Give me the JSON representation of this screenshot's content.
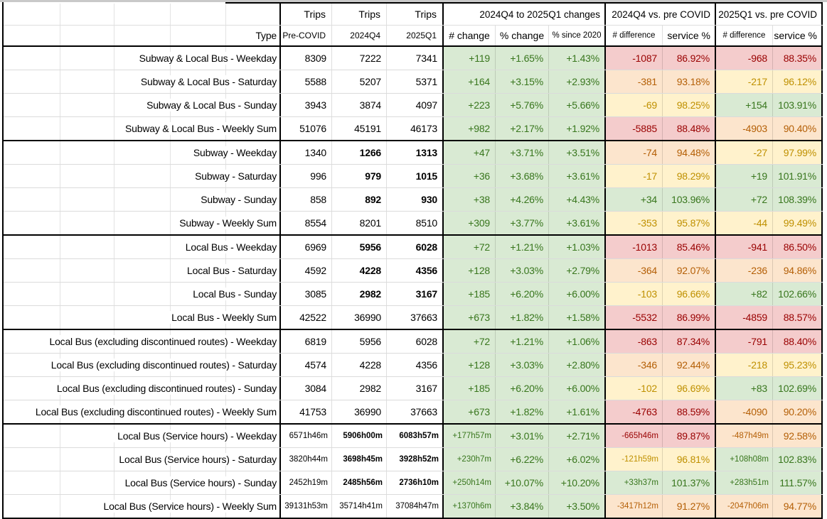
{
  "header": {
    "trips_label": "Trips",
    "type_label": "Type",
    "groups": {
      "changes": "2024Q4 to 2025Q1 changes",
      "q4_vs_pre": "2024Q4 vs. pre COVID",
      "q1_vs_pre": "2025Q1 vs. pre COVID"
    },
    "sub": {
      "pre_covid": "Pre-COVID",
      "q4": "2024Q4",
      "q1": "2025Q1",
      "num_change": "# change",
      "pct_change": "% change",
      "pct_since_2020": "% since 2020",
      "num_difference": "# difference",
      "service_pct": "service %"
    }
  },
  "colors": {
    "green_bg": "#d9ead3",
    "green_text": "#38761d",
    "yellow_bg": "#fff2cc",
    "yellow_text": "#bf9000",
    "orange_bg": "#fce5cd",
    "orange_text": "#b45f06",
    "red_bg": "#f4cccc",
    "red_text": "#990000"
  },
  "rows": [
    {
      "label": "Subway & Local Bus - Weekday",
      "pre": "8309",
      "q4": "7222",
      "q1": "7341",
      "chg": "+119",
      "chg_pct": "+1.65%",
      "pct_2020": "+1.43%",
      "diff_q4": "-1087",
      "svc_q4": "86.92%",
      "c_q4": "red",
      "diff_q1": "-968",
      "svc_q1": "88.35%",
      "c_q1": "red",
      "bold": false,
      "small": false
    },
    {
      "label": "Subway & Local Bus - Saturday",
      "pre": "5588",
      "q4": "5207",
      "q1": "5371",
      "chg": "+164",
      "chg_pct": "+3.15%",
      "pct_2020": "+2.93%",
      "diff_q4": "-381",
      "svc_q4": "93.18%",
      "c_q4": "orange",
      "diff_q1": "-217",
      "svc_q1": "96.12%",
      "c_q1": "yellow",
      "bold": false,
      "small": false
    },
    {
      "label": "Subway & Local Bus - Sunday",
      "pre": "3943",
      "q4": "3874",
      "q1": "4097",
      "chg": "+223",
      "chg_pct": "+5.76%",
      "pct_2020": "+5.66%",
      "diff_q4": "-69",
      "svc_q4": "98.25%",
      "c_q4": "yellow",
      "diff_q1": "+154",
      "svc_q1": "103.91%",
      "c_q1": "green",
      "bold": false,
      "small": false
    },
    {
      "label": "Subway & Local Bus - Weekly Sum",
      "pre": "51076",
      "q4": "45191",
      "q1": "46173",
      "chg": "+982",
      "chg_pct": "+2.17%",
      "pct_2020": "+1.92%",
      "diff_q4": "-5885",
      "svc_q4": "88.48%",
      "c_q4": "red",
      "diff_q1": "-4903",
      "svc_q1": "90.40%",
      "c_q1": "orange",
      "bold": false,
      "small": false
    },
    {
      "label": "Subway - Weekday",
      "pre": "1340",
      "q4": "1266",
      "q1": "1313",
      "chg": "+47",
      "chg_pct": "+3.71%",
      "pct_2020": "+3.51%",
      "diff_q4": "-74",
      "svc_q4": "94.48%",
      "c_q4": "orange",
      "diff_q1": "-27",
      "svc_q1": "97.99%",
      "c_q1": "yellow",
      "bold": true,
      "small": false
    },
    {
      "label": "Subway - Saturday",
      "pre": "996",
      "q4": "979",
      "q1": "1015",
      "chg": "+36",
      "chg_pct": "+3.68%",
      "pct_2020": "+3.61%",
      "diff_q4": "-17",
      "svc_q4": "98.29%",
      "c_q4": "yellow",
      "diff_q1": "+19",
      "svc_q1": "101.91%",
      "c_q1": "green",
      "bold": true,
      "small": false
    },
    {
      "label": "Subway - Sunday",
      "pre": "858",
      "q4": "892",
      "q1": "930",
      "chg": "+38",
      "chg_pct": "+4.26%",
      "pct_2020": "+4.43%",
      "diff_q4": "+34",
      "svc_q4": "103.96%",
      "c_q4": "green",
      "diff_q1": "+72",
      "svc_q1": "108.39%",
      "c_q1": "green",
      "bold": true,
      "small": false
    },
    {
      "label": "Subway - Weekly Sum",
      "pre": "8554",
      "q4": "8201",
      "q1": "8510",
      "chg": "+309",
      "chg_pct": "+3.77%",
      "pct_2020": "+3.61%",
      "diff_q4": "-353",
      "svc_q4": "95.87%",
      "c_q4": "yellow",
      "diff_q1": "-44",
      "svc_q1": "99.49%",
      "c_q1": "yellow",
      "bold": false,
      "small": false
    },
    {
      "label": "Local Bus - Weekday",
      "pre": "6969",
      "q4": "5956",
      "q1": "6028",
      "chg": "+72",
      "chg_pct": "+1.21%",
      "pct_2020": "+1.03%",
      "diff_q4": "-1013",
      "svc_q4": "85.46%",
      "c_q4": "red",
      "diff_q1": "-941",
      "svc_q1": "86.50%",
      "c_q1": "red",
      "bold": true,
      "small": false
    },
    {
      "label": "Local Bus - Saturday",
      "pre": "4592",
      "q4": "4228",
      "q1": "4356",
      "chg": "+128",
      "chg_pct": "+3.03%",
      "pct_2020": "+2.79%",
      "diff_q4": "-364",
      "svc_q4": "92.07%",
      "c_q4": "orange",
      "diff_q1": "-236",
      "svc_q1": "94.86%",
      "c_q1": "orange",
      "bold": true,
      "small": false
    },
    {
      "label": "Local Bus - Sunday",
      "pre": "3085",
      "q4": "2982",
      "q1": "3167",
      "chg": "+185",
      "chg_pct": "+6.20%",
      "pct_2020": "+6.00%",
      "diff_q4": "-103",
      "svc_q4": "96.66%",
      "c_q4": "yellow",
      "diff_q1": "+82",
      "svc_q1": "102.66%",
      "c_q1": "green",
      "bold": true,
      "small": false
    },
    {
      "label": "Local Bus - Weekly Sum",
      "pre": "42522",
      "q4": "36990",
      "q1": "37663",
      "chg": "+673",
      "chg_pct": "+1.82%",
      "pct_2020": "+1.58%",
      "diff_q4": "-5532",
      "svc_q4": "86.99%",
      "c_q4": "red",
      "diff_q1": "-4859",
      "svc_q1": "88.57%",
      "c_q1": "red",
      "bold": false,
      "small": false
    },
    {
      "label": "Local Bus (excluding discontinued routes) - Weekday",
      "pre": "6819",
      "q4": "5956",
      "q1": "6028",
      "chg": "+72",
      "chg_pct": "+1.21%",
      "pct_2020": "+1.06%",
      "diff_q4": "-863",
      "svc_q4": "87.34%",
      "c_q4": "red",
      "diff_q1": "-791",
      "svc_q1": "88.40%",
      "c_q1": "red",
      "bold": false,
      "small": false
    },
    {
      "label": "Local Bus (excluding discontinued routes) - Saturday",
      "pre": "4574",
      "q4": "4228",
      "q1": "4356",
      "chg": "+128",
      "chg_pct": "+3.03%",
      "pct_2020": "+2.80%",
      "diff_q4": "-346",
      "svc_q4": "92.44%",
      "c_q4": "orange",
      "diff_q1": "-218",
      "svc_q1": "95.23%",
      "c_q1": "yellow",
      "bold": false,
      "small": false
    },
    {
      "label": "Local Bus (excluding discontinued routes) - Sunday",
      "pre": "3084",
      "q4": "2982",
      "q1": "3167",
      "chg": "+185",
      "chg_pct": "+6.20%",
      "pct_2020": "+6.00%",
      "diff_q4": "-102",
      "svc_q4": "96.69%",
      "c_q4": "yellow",
      "diff_q1": "+83",
      "svc_q1": "102.69%",
      "c_q1": "green",
      "bold": false,
      "small": false
    },
    {
      "label": "Local Bus (excluding discontinued routes) - Weekly Sum",
      "pre": "41753",
      "q4": "36990",
      "q1": "37663",
      "chg": "+673",
      "chg_pct": "+1.82%",
      "pct_2020": "+1.61%",
      "diff_q4": "-4763",
      "svc_q4": "88.59%",
      "c_q4": "red",
      "diff_q1": "-4090",
      "svc_q1": "90.20%",
      "c_q1": "orange",
      "bold": false,
      "small": false
    },
    {
      "label": "Local Bus (Service hours) - Weekday",
      "pre": "6571h46m",
      "q4": "5906h00m",
      "q1": "6083h57m",
      "chg": "+177h57m",
      "chg_pct": "+3.01%",
      "pct_2020": "+2.71%",
      "diff_q4": "-665h46m",
      "svc_q4": "89.87%",
      "c_q4": "red",
      "diff_q1": "-487h49m",
      "svc_q1": "92.58%",
      "c_q1": "orange",
      "bold": true,
      "small": true
    },
    {
      "label": "Local Bus (Service hours) - Saturday",
      "pre": "3820h44m",
      "q4": "3698h45m",
      "q1": "3928h52m",
      "chg": "+230h7m",
      "chg_pct": "+6.22%",
      "pct_2020": "+6.02%",
      "diff_q4": "-121h59m",
      "svc_q4": "96.81%",
      "c_q4": "yellow",
      "diff_q1": "+108h08m",
      "svc_q1": "102.83%",
      "c_q1": "green",
      "bold": true,
      "small": true
    },
    {
      "label": "Local Bus (Service hours) - Sunday",
      "pre": "2452h19m",
      "q4": "2485h56m",
      "q1": "2736h10m",
      "chg": "+250h14m",
      "chg_pct": "+10.07%",
      "pct_2020": "+10.20%",
      "diff_q4": "+33h37m",
      "svc_q4": "101.37%",
      "c_q4": "green",
      "diff_q1": "+283h51m",
      "svc_q1": "111.57%",
      "c_q1": "green",
      "bold": true,
      "small": true
    },
    {
      "label": "Local Bus (Service hours) - Weekly Sum",
      "pre": "39131h53m",
      "q4": "35714h41m",
      "q1": "37084h47m",
      "chg": "+1370h6m",
      "chg_pct": "+3.84%",
      "pct_2020": "+3.50%",
      "diff_q4": "-3417h12m",
      "svc_q4": "91.27%",
      "c_q4": "orange",
      "diff_q1": "-2047h06m",
      "svc_q1": "94.77%",
      "c_q1": "orange",
      "bold": false,
      "small": true
    }
  ]
}
